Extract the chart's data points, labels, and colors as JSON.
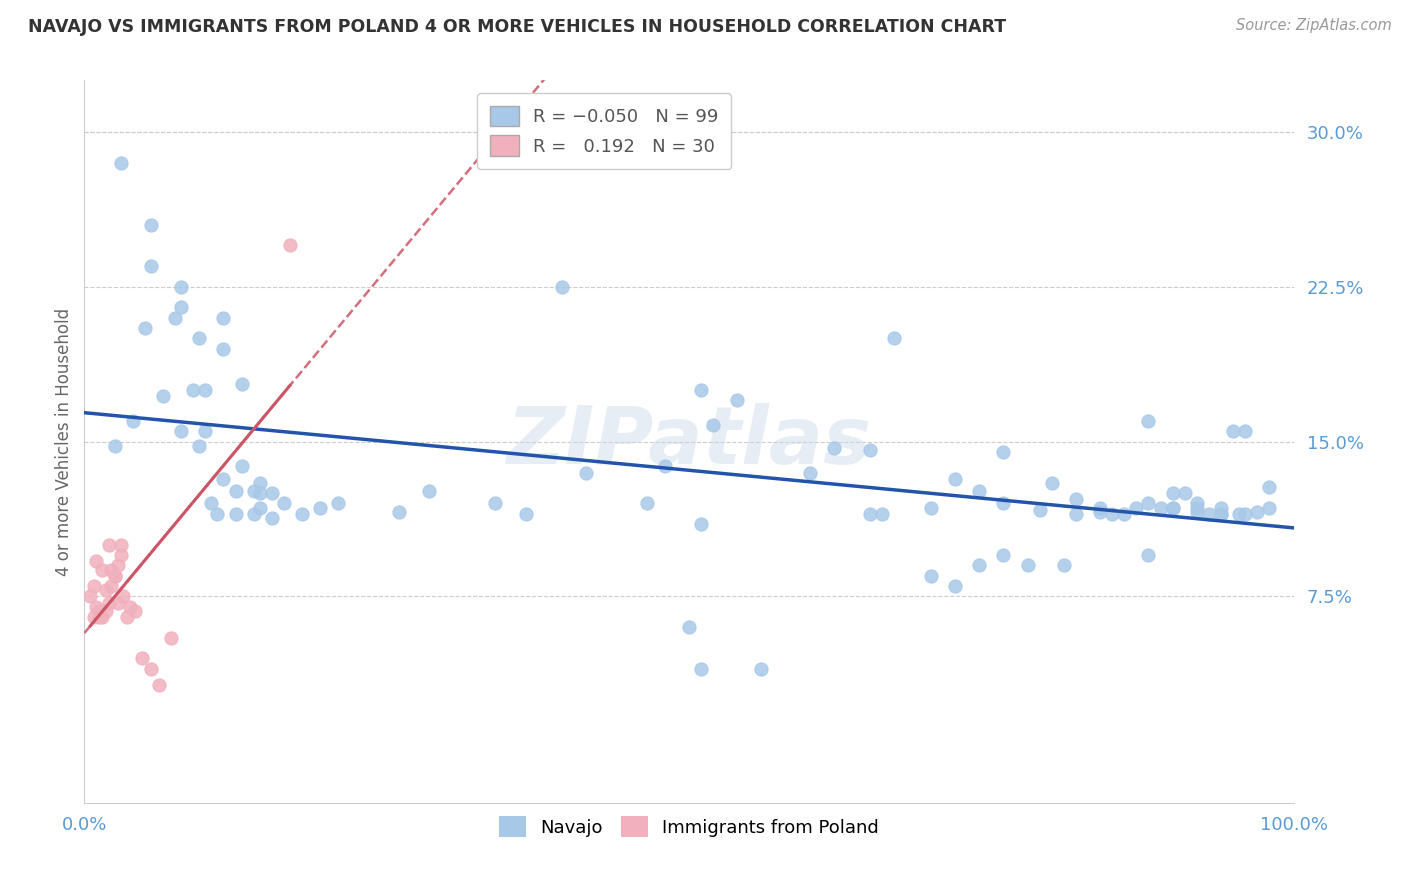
{
  "title": "NAVAJO VS IMMIGRANTS FROM POLAND 4 OR MORE VEHICLES IN HOUSEHOLD CORRELATION CHART",
  "source": "Source: ZipAtlas.com",
  "ylabel": "4 or more Vehicles in Household",
  "xlim": [
    0.0,
    1.0
  ],
  "ylim": [
    -0.025,
    0.325
  ],
  "yticks": [
    0.075,
    0.15,
    0.225,
    0.3
  ],
  "ytick_labels": [
    "7.5%",
    "15.0%",
    "22.5%",
    "30.0%"
  ],
  "xticks": [
    0.0,
    0.1,
    0.2,
    0.3,
    0.4,
    0.5,
    0.6,
    0.7,
    0.8,
    0.9,
    1.0
  ],
  "xtick_labels": [
    "0.0%",
    "",
    "",
    "",
    "",
    "",
    "",
    "",
    "",
    "",
    "100.0%"
  ],
  "navajo_R": -0.05,
  "navajo_N": 99,
  "poland_R": 0.192,
  "poland_N": 30,
  "legend_labels": [
    "Navajo",
    "Immigrants from Poland"
  ],
  "navajo_color": "#a8c8e8",
  "poland_color": "#f0b0bc",
  "navajo_line_color": "#2255aa",
  "poland_line_color": "#cc5566",
  "background_color": "#ffffff",
  "grid_color": "#cccccc",
  "watermark": "ZIPatlas",
  "navajo_x": [
    0.03,
    0.055,
    0.08,
    0.055,
    0.08,
    0.05,
    0.075,
    0.09,
    0.1,
    0.115,
    0.095,
    0.115,
    0.025,
    0.04,
    0.065,
    0.08,
    0.1,
    0.095,
    0.115,
    0.13,
    0.145,
    0.11,
    0.125,
    0.13,
    0.155,
    0.105,
    0.125,
    0.14,
    0.155,
    0.14,
    0.145,
    0.165,
    0.18,
    0.145,
    0.195,
    0.21,
    0.26,
    0.285,
    0.34,
    0.365,
    0.395,
    0.415,
    0.465,
    0.51,
    0.48,
    0.51,
    0.52,
    0.54,
    0.6,
    0.62,
    0.65,
    0.67,
    0.7,
    0.72,
    0.74,
    0.76,
    0.76,
    0.79,
    0.8,
    0.82,
    0.84,
    0.85,
    0.87,
    0.88,
    0.89,
    0.9,
    0.91,
    0.92,
    0.93,
    0.94,
    0.95,
    0.96,
    0.98,
    0.88,
    0.9,
    0.92,
    0.94,
    0.955,
    0.97,
    0.98,
    0.9,
    0.92,
    0.94,
    0.96,
    0.82,
    0.84,
    0.86,
    0.88,
    0.78,
    0.81,
    0.7,
    0.72,
    0.74,
    0.76,
    0.65,
    0.66,
    0.56,
    0.5,
    0.51
  ],
  "navajo_y": [
    0.285,
    0.235,
    0.225,
    0.255,
    0.215,
    0.205,
    0.21,
    0.175,
    0.175,
    0.21,
    0.2,
    0.195,
    0.148,
    0.16,
    0.172,
    0.155,
    0.155,
    0.148,
    0.132,
    0.178,
    0.13,
    0.115,
    0.115,
    0.138,
    0.113,
    0.12,
    0.126,
    0.126,
    0.125,
    0.115,
    0.118,
    0.12,
    0.115,
    0.125,
    0.118,
    0.12,
    0.116,
    0.126,
    0.12,
    0.115,
    0.225,
    0.135,
    0.12,
    0.175,
    0.138,
    0.11,
    0.158,
    0.17,
    0.135,
    0.147,
    0.146,
    0.2,
    0.118,
    0.132,
    0.126,
    0.12,
    0.145,
    0.117,
    0.13,
    0.122,
    0.118,
    0.115,
    0.118,
    0.12,
    0.118,
    0.118,
    0.125,
    0.12,
    0.115,
    0.115,
    0.155,
    0.155,
    0.128,
    0.16,
    0.125,
    0.118,
    0.118,
    0.115,
    0.116,
    0.118,
    0.118,
    0.116,
    0.115,
    0.115,
    0.115,
    0.116,
    0.115,
    0.095,
    0.09,
    0.09,
    0.085,
    0.08,
    0.09,
    0.095,
    0.115,
    0.115,
    0.04,
    0.06,
    0.04
  ],
  "poland_x": [
    0.005,
    0.008,
    0.01,
    0.012,
    0.015,
    0.018,
    0.02,
    0.022,
    0.025,
    0.028,
    0.03,
    0.01,
    0.015,
    0.02,
    0.025,
    0.03,
    0.035,
    0.008,
    0.012,
    0.018,
    0.022,
    0.028,
    0.032,
    0.038,
    0.042,
    0.048,
    0.055,
    0.062,
    0.072,
    0.17
  ],
  "poland_y": [
    0.075,
    0.08,
    0.07,
    0.068,
    0.065,
    0.068,
    0.072,
    0.088,
    0.085,
    0.09,
    0.095,
    0.092,
    0.088,
    0.1,
    0.085,
    0.1,
    0.065,
    0.065,
    0.065,
    0.078,
    0.08,
    0.072,
    0.075,
    0.07,
    0.068,
    0.045,
    0.04,
    0.032,
    0.055,
    0.245
  ]
}
